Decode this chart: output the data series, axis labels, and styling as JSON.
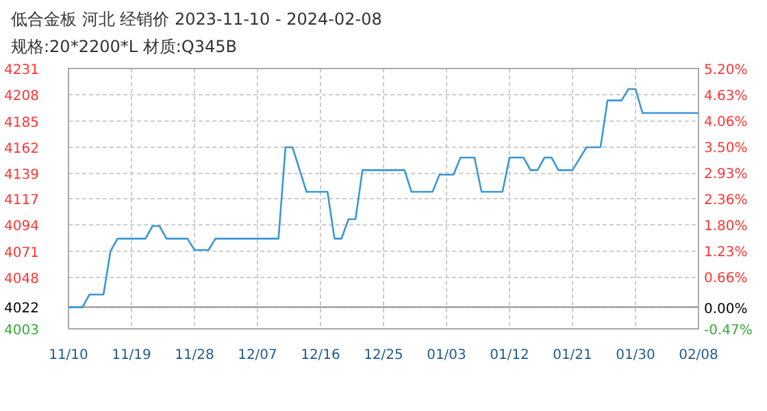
{
  "chart_data": {
    "type": "line",
    "title": "低合金板 河北 经销价 2023-11-10 - 2024-02-08",
    "subtitle": "规格:20*2200*L 材质:Q345B",
    "x": [
      "2023-11-10",
      "2023-11-12",
      "2023-11-13",
      "2023-11-15",
      "2023-11-16",
      "2023-11-17",
      "2023-11-21",
      "2023-11-22",
      "2023-11-23",
      "2023-11-24",
      "2023-11-27",
      "2023-11-28",
      "2023-11-30",
      "2023-12-01",
      "2023-12-10",
      "2023-12-11",
      "2023-12-12",
      "2023-12-14",
      "2023-12-17",
      "2023-12-18",
      "2023-12-19",
      "2023-12-20",
      "2023-12-21",
      "2023-12-22",
      "2023-12-28",
      "2023-12-29",
      "2024-01-01",
      "2024-01-02",
      "2024-01-04",
      "2024-01-05",
      "2024-01-07",
      "2024-01-08",
      "2024-01-11",
      "2024-01-12",
      "2024-01-14",
      "2024-01-15",
      "2024-01-16",
      "2024-01-17",
      "2024-01-18",
      "2024-01-19",
      "2024-01-21",
      "2024-01-23",
      "2024-01-25",
      "2024-01-26",
      "2024-01-28",
      "2024-01-29",
      "2024-01-30",
      "2024-01-31",
      "2024-02-08"
    ],
    "series": [
      {
        "color": "#3a97d6",
        "values": [
          4022,
          4022,
          4033,
          4033,
          4071,
          4082,
          4082,
          4093,
          4093,
          4082,
          4082,
          4072,
          4072,
          4082,
          4082,
          4162,
          4162,
          4123,
          4123,
          4082,
          4082,
          4099,
          4099,
          4142,
          4142,
          4123,
          4123,
          4138,
          4138,
          4153,
          4153,
          4123,
          4123,
          4153,
          4153,
          4142,
          4142,
          4153,
          4153,
          4142,
          4142,
          4162,
          4162,
          4203,
          4203,
          4213,
          4213,
          4192,
          4192
        ]
      }
    ],
    "xlim": [
      "2023-11-10",
      "2024-02-08"
    ],
    "xticks": [
      {
        "value": "2023-11-10",
        "label": "11/10"
      },
      {
        "value": "2023-11-19",
        "label": "11/19"
      },
      {
        "value": "2023-11-28",
        "label": "11/28"
      },
      {
        "value": "2023-12-07",
        "label": "12/07"
      },
      {
        "value": "2023-12-16",
        "label": "12/16"
      },
      {
        "value": "2023-12-25",
        "label": "12/25"
      },
      {
        "value": "2024-01-03",
        "label": "01/03"
      },
      {
        "value": "2024-01-12",
        "label": "01/12"
      },
      {
        "value": "2024-01-21",
        "label": "01/21"
      },
      {
        "value": "2024-01-30",
        "label": "01/30"
      },
      {
        "value": "2024-02-08",
        "label": "02/08"
      }
    ],
    "ylim": [
      4003,
      4231
    ],
    "yticks": [
      4003,
      4022,
      4048,
      4071,
      4094,
      4117,
      4139,
      4162,
      4185,
      4208,
      4231
    ],
    "y2lim": [
      -0.47,
      5.2
    ],
    "y2ticks": [
      {
        "value": -0.47,
        "label": "-0.47%"
      },
      {
        "value": 0,
        "label": "0.00%"
      },
      {
        "value": 0.66,
        "label": "0.66%"
      },
      {
        "value": 1.23,
        "label": "1.23%"
      },
      {
        "value": 1.8,
        "label": "1.80%"
      },
      {
        "value": 2.36,
        "label": "2.36%"
      },
      {
        "value": 2.93,
        "label": "2.93%"
      },
      {
        "value": 3.5,
        "label": "3.50%"
      },
      {
        "value": 4.06,
        "label": "4.06%"
      },
      {
        "value": 4.63,
        "label": "4.63%"
      },
      {
        "value": 5.2,
        "label": "5.20%"
      }
    ],
    "ref_lines": [
      {
        "axis": "y",
        "value": 4022,
        "color": "#999999"
      }
    ],
    "grid": true,
    "marker": "none",
    "line_style": "solid"
  }
}
